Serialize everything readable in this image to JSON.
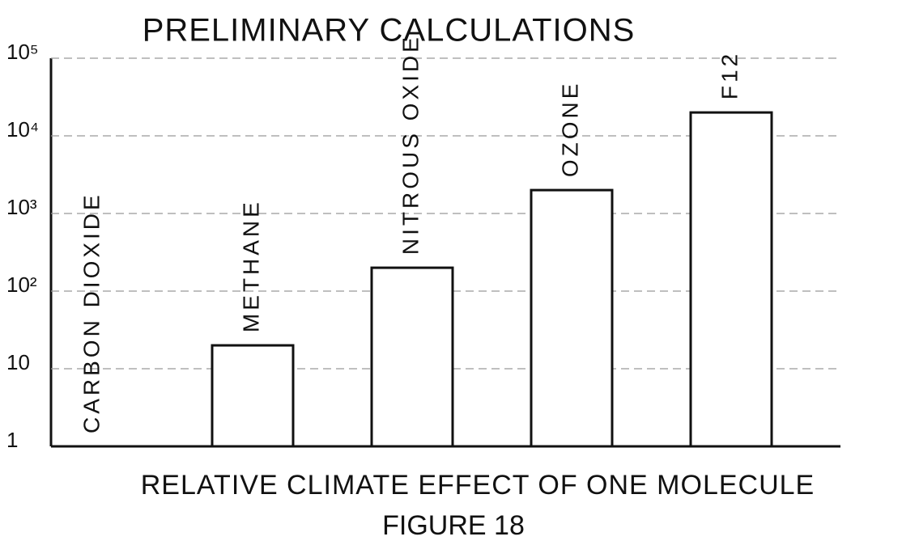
{
  "chart_data": {
    "type": "bar",
    "title": "PRELIMINARY CALCULATIONS",
    "x_label": "RELATIVE CLIMATE EFFECT OF ONE MOLECULE",
    "caption": "FIGURE 18",
    "categories": [
      "CARBON DIOXIDE",
      "METHANE",
      "NITROUS OXIDE",
      "OZONE",
      "F12"
    ],
    "values": [
      1,
      20,
      200,
      2000,
      20000
    ],
    "color": "#ffffff",
    "log_scale": true,
    "ylim": [
      1,
      100000
    ],
    "yticks": [
      1,
      10,
      {
        "value": 100,
        "label": "10²"
      },
      {
        "value": 1000,
        "label": "10³"
      },
      {
        "value": 10000,
        "label": "10⁴"
      },
      {
        "value": 100000,
        "label": "10⁵"
      }
    ],
    "grid": true
  }
}
